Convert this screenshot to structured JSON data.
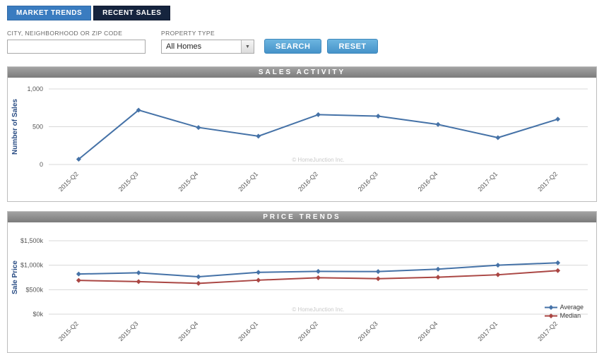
{
  "tabs": [
    {
      "label": "MARKET TRENDS"
    },
    {
      "label": "RECENT SALES"
    }
  ],
  "search": {
    "city_label": "CITY, NEIGHBORHOOD OR ZIP CODE",
    "city_value": "",
    "property_type_label": "PROPERTY TYPE",
    "property_type_value": "All Homes",
    "search_label": "SEARCH",
    "reset_label": "RESET"
  },
  "colors": {
    "active_tab": "#3a7cc0",
    "inactive_tab": "#15243e",
    "button_blue": "#4693c9",
    "series_blue": "#4572a7",
    "series_red": "#aa4643"
  },
  "chart_data": [
    {
      "type": "line",
      "title": "SALES ACTIVITY",
      "ylabel": "Number of Sales",
      "categories": [
        "2015-Q2",
        "2015-Q3",
        "2015-Q4",
        "2016-Q1",
        "2016-Q2",
        "2016-Q3",
        "2016-Q4",
        "2017-Q1",
        "2017-Q2"
      ],
      "series": [
        {
          "name": "Sales",
          "color": "#4572a7",
          "values": [
            70,
            720,
            490,
            375,
            660,
            640,
            530,
            355,
            600
          ]
        }
      ],
      "ylim": [
        0,
        1000
      ],
      "yticks": [
        0,
        500,
        1000
      ],
      "ytick_labels": [
        "0",
        "500",
        "1,000"
      ],
      "grid": true,
      "legend_position": null,
      "watermark": "© HomeJunction Inc."
    },
    {
      "type": "line",
      "title": "PRICE TRENDS",
      "ylabel": "Sale Price",
      "categories": [
        "2015-Q2",
        "2015-Q3",
        "2015-Q4",
        "2016-Q1",
        "2016-Q2",
        "2016-Q3",
        "2016-Q4",
        "2017-Q1",
        "2017-Q2"
      ],
      "series": [
        {
          "name": "Average",
          "color": "#4572a7",
          "values": [
            820,
            845,
            765,
            855,
            875,
            870,
            920,
            1000,
            1050
          ]
        },
        {
          "name": "Median",
          "color": "#aa4643",
          "values": [
            690,
            665,
            630,
            695,
            745,
            725,
            755,
            805,
            890
          ]
        }
      ],
      "ylim": [
        0,
        1500
      ],
      "yticks": [
        0,
        500,
        1000,
        1500
      ],
      "ytick_labels": [
        "$0k",
        "$500k",
        "$1,000k",
        "$1,500k"
      ],
      "grid": true,
      "legend_position": "right-bottom",
      "watermark": "© HomeJunction Inc."
    }
  ]
}
